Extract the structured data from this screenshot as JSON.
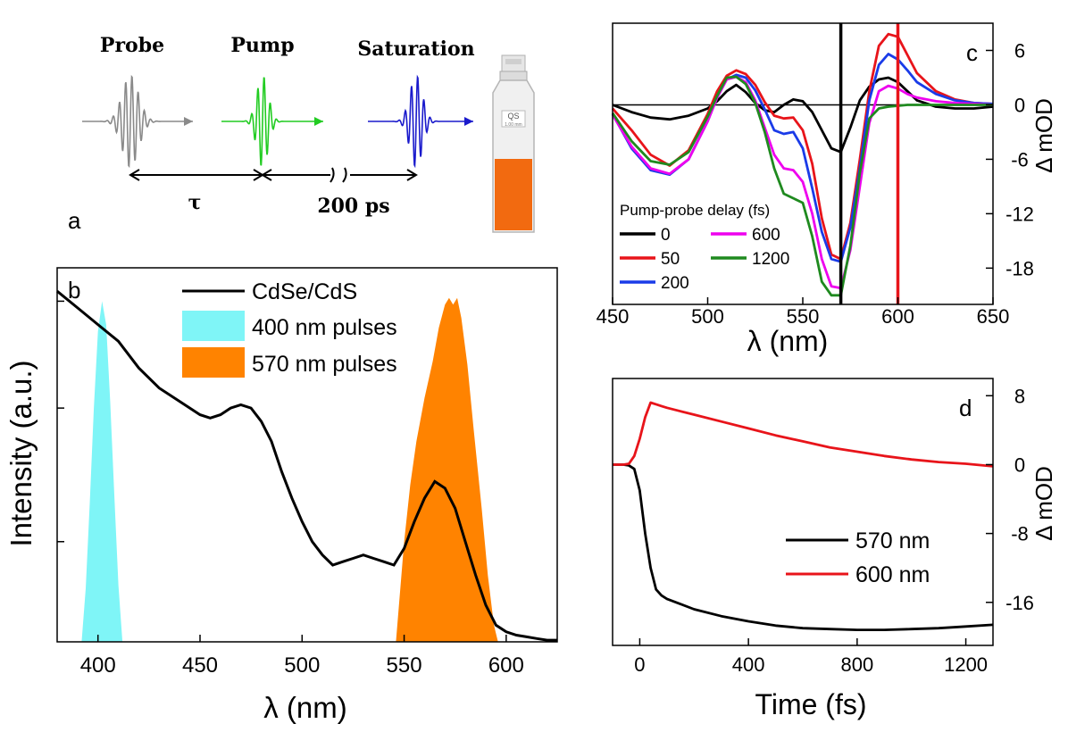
{
  "schematic": {
    "panel_label": "a",
    "pulse_labels": [
      "Probe",
      "Pump",
      "Saturation"
    ],
    "delay_label": "τ",
    "gap_label": "200 ps",
    "cuvette_label": "QS",
    "cuvette_path": "1.00 mm",
    "colors": {
      "probe": "#8a8a8a",
      "pump": "#22cc22",
      "saturation": "#1a1acc",
      "sample": "#f26a10"
    }
  },
  "chart_data": [
    {
      "id": "b",
      "type": "area",
      "panel_label": "b",
      "xlabel": "λ (nm)",
      "ylabel": "Intensity (a.u.)",
      "xlim": [
        380,
        625
      ],
      "ylim": [
        0,
        1.12
      ],
      "xticks": [
        400,
        450,
        500,
        550,
        600
      ],
      "legend": [
        {
          "name": "CdSe/CdS",
          "kind": "line",
          "color": "#000000"
        },
        {
          "name": "400 nm pulses",
          "kind": "fill",
          "color": "#7ff5f7"
        },
        {
          "name": "570 nm pulses",
          "kind": "fill",
          "color": "#ff8300"
        }
      ],
      "series": [
        {
          "name": "CdSe/CdS",
          "x": [
            380,
            390,
            400,
            410,
            420,
            430,
            440,
            450,
            455,
            460,
            465,
            470,
            475,
            480,
            485,
            490,
            495,
            500,
            505,
            510,
            515,
            520,
            525,
            530,
            535,
            540,
            545,
            550,
            555,
            560,
            565,
            570,
            575,
            580,
            585,
            590,
            595,
            600,
            605,
            610,
            615,
            620,
            625
          ],
          "values": [
            1.05,
            1.0,
            0.95,
            0.9,
            0.82,
            0.76,
            0.72,
            0.68,
            0.67,
            0.68,
            0.7,
            0.71,
            0.7,
            0.66,
            0.6,
            0.51,
            0.43,
            0.36,
            0.3,
            0.26,
            0.23,
            0.24,
            0.25,
            0.26,
            0.25,
            0.24,
            0.23,
            0.28,
            0.36,
            0.43,
            0.48,
            0.46,
            0.4,
            0.3,
            0.2,
            0.11,
            0.05,
            0.03,
            0.02,
            0.015,
            0.01,
            0.005,
            0.005
          ]
        },
        {
          "name": "400 nm pulses",
          "x": [
            392,
            394,
            396,
            398,
            400,
            402,
            404,
            406,
            408,
            410,
            412
          ],
          "values": [
            0.0,
            0.16,
            0.42,
            0.7,
            0.93,
            1.02,
            0.95,
            0.72,
            0.44,
            0.17,
            0.0
          ]
        },
        {
          "name": "570 nm pulses",
          "x": [
            546,
            550,
            553,
            556,
            560,
            564,
            567,
            570,
            572,
            574,
            576,
            578,
            581,
            584,
            588,
            591,
            594,
            596
          ],
          "values": [
            0.0,
            0.3,
            0.47,
            0.6,
            0.73,
            0.84,
            0.94,
            1.01,
            1.03,
            1.01,
            1.03,
            0.97,
            0.83,
            0.64,
            0.4,
            0.2,
            0.05,
            0.0
          ]
        }
      ]
    },
    {
      "id": "c",
      "type": "line",
      "panel_label": "c",
      "xlabel": "λ (nm)",
      "ylabel": "Δ mOD",
      "xlim": [
        450,
        650
      ],
      "ylim": [
        -22,
        9
      ],
      "xticks": [
        450,
        500,
        550,
        600,
        650
      ],
      "yticks": [
        -18,
        -12,
        -6,
        0,
        6
      ],
      "legend_title": "Pump-probe delay (fs)",
      "markers": [
        {
          "x": 570,
          "color": "#000000"
        },
        {
          "x": 600,
          "color": "#e8141a"
        }
      ],
      "x": [
        450,
        460,
        470,
        480,
        490,
        500,
        505,
        510,
        515,
        520,
        525,
        530,
        535,
        540,
        545,
        550,
        555,
        560,
        565,
        570,
        575,
        580,
        585,
        590,
        595,
        600,
        605,
        610,
        620,
        630,
        640,
        650
      ],
      "series": [
        {
          "name": "0",
          "color": "#000000",
          "values": [
            0,
            -0.8,
            -1.4,
            -1.6,
            -1.2,
            -0.4,
            0.4,
            1.5,
            2.2,
            1.4,
            0.2,
            -0.6,
            -0.8,
            0.0,
            0.6,
            0.4,
            -0.8,
            -2.8,
            -4.8,
            -5.2,
            -2.5,
            0.5,
            2.0,
            2.8,
            3.0,
            2.5,
            1.5,
            0.5,
            -0.2,
            -0.4,
            -0.4,
            -0.2
          ]
        },
        {
          "name": "50",
          "color": "#e8141a",
          "values": [
            -0.4,
            -2.8,
            -5.5,
            -6.7,
            -5.0,
            -1.0,
            1.5,
            3.2,
            3.8,
            3.4,
            2.2,
            0.3,
            -1.2,
            -1.5,
            -1.4,
            -2.8,
            -6.5,
            -12.5,
            -16.5,
            -17.0,
            -13.0,
            -6.0,
            1.5,
            6.5,
            7.8,
            7.5,
            5.5,
            3.5,
            1.5,
            0.6,
            0.2,
            0.1
          ]
        },
        {
          "name": "200",
          "color": "#1a3be8",
          "values": [
            -1.0,
            -4.8,
            -7.2,
            -7.7,
            -6.0,
            -1.8,
            0.8,
            2.8,
            3.3,
            3.0,
            1.6,
            -0.5,
            -2.8,
            -3.2,
            -3.0,
            -4.8,
            -9.2,
            -14.0,
            -17.0,
            -17.3,
            -13.5,
            -7.0,
            0.5,
            4.4,
            5.6,
            5.0,
            3.8,
            2.5,
            1.2,
            0.5,
            0.2,
            0.1
          ]
        },
        {
          "name": "600",
          "color": "#ee00ee",
          "values": [
            -1.1,
            -4.6,
            -7.0,
            -7.6,
            -6.0,
            -1.8,
            0.8,
            2.8,
            3.1,
            2.5,
            0.5,
            -2.5,
            -5.5,
            -7.0,
            -7.2,
            -8.5,
            -12.0,
            -17.0,
            -20.0,
            -20.2,
            -16.0,
            -9.0,
            -2.0,
            1.5,
            2.1,
            1.8,
            1.2,
            0.8,
            0.4,
            0.2,
            0.1,
            0.0
          ]
        },
        {
          "name": "1200",
          "color": "#1f8a1f",
          "values": [
            -0.9,
            -4.0,
            -6.2,
            -6.6,
            -5.2,
            -1.3,
            1.0,
            3.0,
            3.1,
            2.3,
            0.2,
            -3.0,
            -7.0,
            -9.8,
            -10.3,
            -10.8,
            -14.5,
            -19.5,
            -21.0,
            -21.0,
            -15.5,
            -7.5,
            -1.5,
            -0.4,
            -0.2,
            -0.1,
            0.0,
            0.0,
            0.0,
            0.0,
            0.0,
            0.0
          ]
        }
      ]
    },
    {
      "id": "d",
      "type": "line",
      "panel_label": "d",
      "xlabel": "Time (fs)",
      "ylabel": "Δ mOD",
      "xlim": [
        -100,
        1300
      ],
      "ylim": [
        -21,
        10
      ],
      "xticks": [
        0,
        400,
        800,
        1200
      ],
      "yticks": [
        -16,
        -8,
        0,
        8
      ],
      "x": [
        -100,
        -60,
        -40,
        -20,
        0,
        20,
        40,
        60,
        80,
        100,
        150,
        200,
        300,
        400,
        500,
        600,
        700,
        800,
        900,
        1000,
        1100,
        1200,
        1300
      ],
      "series": [
        {
          "name": "570 nm",
          "color": "#000000",
          "values": [
            0,
            0,
            -0.1,
            -0.5,
            -3,
            -8,
            -12,
            -14.5,
            -15.2,
            -15.6,
            -16.2,
            -16.8,
            -17.6,
            -18.2,
            -18.7,
            -19.0,
            -19.1,
            -19.2,
            -19.2,
            -19.1,
            -19.0,
            -18.8,
            -18.6
          ]
        },
        {
          "name": "600 nm",
          "color": "#e8141a",
          "values": [
            0,
            0,
            0.1,
            1,
            3,
            5.5,
            7.2,
            7.0,
            6.8,
            6.6,
            6.2,
            5.8,
            5.0,
            4.2,
            3.4,
            2.7,
            2.0,
            1.5,
            1.0,
            0.6,
            0.3,
            0.1,
            -0.2
          ]
        }
      ]
    }
  ]
}
